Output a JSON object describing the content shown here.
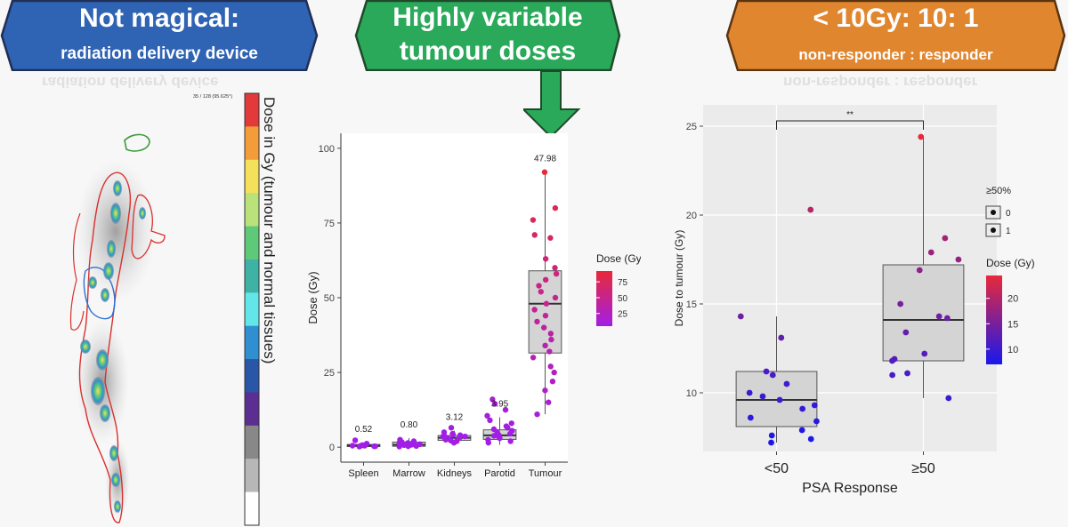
{
  "banners": {
    "left": {
      "title": "Not magical:",
      "subtitle": "radiation delivery device",
      "color": "#2f63b4"
    },
    "center": {
      "title": "Highly variable",
      "subtitle": "tumour doses",
      "color": "#2aa95a"
    },
    "right": {
      "title": "< 10Gy: 10: 1",
      "subtitle": "non-responder : responder",
      "color": "#e0862f"
    }
  },
  "scan": {
    "header": "35 / 128 (95.625°)",
    "colorbar_label": "Dose in Gy (tumour and normal tissues)",
    "colorbar_colors": [
      "#e23a3a",
      "#f39c3a",
      "#f4e05a",
      "#b9e27a",
      "#5fc97a",
      "#3fb2a6",
      "#63e6e8",
      "#2f8fd0",
      "#2a56a8",
      "#5b2e92",
      "#888888",
      "#b7b7b7",
      "#ffffff"
    ]
  },
  "chart_data": [
    {
      "type": "box",
      "title": "",
      "xlabel": "",
      "ylabel": "Dose (Gy)",
      "ylim": [
        -5,
        105
      ],
      "yticks": [
        0,
        25,
        50,
        75,
        100
      ],
      "categories": [
        "Spleen",
        "Marrow",
        "Kidneys",
        "Parotid",
        "Tumour"
      ],
      "median_labels": [
        "0.52",
        "0.80",
        "3.12",
        "3.95",
        "47.98"
      ],
      "boxes": [
        {
          "q1": 0.2,
          "median": 0.52,
          "q3": 0.9,
          "min": 0.1,
          "max": 1.5
        },
        {
          "q1": 0.3,
          "median": 0.8,
          "q3": 1.7,
          "min": 0.1,
          "max": 3.0
        },
        {
          "q1": 2.3,
          "median": 3.12,
          "q3": 3.9,
          "min": 1.2,
          "max": 5.5
        },
        {
          "q1": 2.6,
          "median": 3.95,
          "q3": 5.8,
          "min": 0.8,
          "max": 10.0
        },
        {
          "q1": 31.5,
          "median": 47.98,
          "q3": 59,
          "min": 11,
          "max": 92
        }
      ],
      "points": [
        [
          0.3,
          0.5,
          0.6,
          0.4,
          0.7,
          1.2,
          2.3,
          0.2,
          0.5,
          0.3
        ],
        [
          0.3,
          0.6,
          0.8,
          1.0,
          1.4,
          1.7,
          2.0,
          0.4,
          0.9,
          1.2,
          2.5,
          0.2,
          0.7,
          1.5
        ],
        [
          2.0,
          2.5,
          3.0,
          3.2,
          3.5,
          4.0,
          4.5,
          5.0,
          2.8,
          3.8,
          6.5,
          1.5,
          2.2,
          4.2,
          3.6
        ],
        [
          1.5,
          2.5,
          3.0,
          3.5,
          4.0,
          4.5,
          5.0,
          5.5,
          6.0,
          7.0,
          8.0,
          9.0,
          10.5,
          12.5,
          14.5,
          16.0,
          2.0,
          3.8,
          4.2,
          6.5
        ],
        [
          92,
          80,
          76,
          71,
          70,
          63,
          60,
          58,
          56,
          54,
          52,
          50,
          48,
          46,
          44,
          42,
          40,
          38,
          36,
          34,
          32,
          30,
          27,
          25,
          22,
          19,
          15,
          11
        ]
      ],
      "legend": {
        "title": "Dose (Gy)",
        "ticks": [
          25,
          50,
          75
        ],
        "range": [
          5,
          92
        ],
        "low_color": "#a21ee6",
        "high_color": "#e8293a",
        "position": "right"
      }
    },
    {
      "type": "box",
      "title": "",
      "xlabel": "PSA Response",
      "ylabel": "Dose to tumour (Gy)",
      "ylim": [
        6.7,
        26.2
      ],
      "yticks": [
        10,
        15,
        20,
        25
      ],
      "categories": [
        "<50",
        "≥50"
      ],
      "significance": "**",
      "boxes": [
        {
          "q1": 8.1,
          "median": 9.6,
          "q3": 11.2,
          "min": 7.2,
          "max": 14.3
        },
        {
          "q1": 11.8,
          "median": 14.1,
          "q3": 17.2,
          "min": 9.7,
          "max": 24.4
        }
      ],
      "points": [
        [
          20.3,
          14.3,
          13.1,
          11.2,
          11.0,
          10.5,
          10.0,
          9.8,
          9.6,
          9.3,
          9.1,
          8.6,
          8.4,
          7.9,
          7.6,
          7.4,
          7.2
        ],
        [
          24.4,
          18.7,
          17.9,
          17.5,
          16.9,
          15.0,
          14.3,
          14.2,
          13.4,
          12.2,
          11.9,
          11.8,
          11.1,
          11.0,
          9.7
        ]
      ],
      "legend_shape": {
        "title": "≥50%",
        "items": [
          "0",
          "1"
        ]
      },
      "legend": {
        "title": "Dose (Gy)",
        "ticks": [
          10,
          15,
          20
        ],
        "range": [
          7,
          24.5
        ],
        "low_color": "#1818ee",
        "high_color": "#e8293a",
        "position": "right"
      }
    }
  ]
}
